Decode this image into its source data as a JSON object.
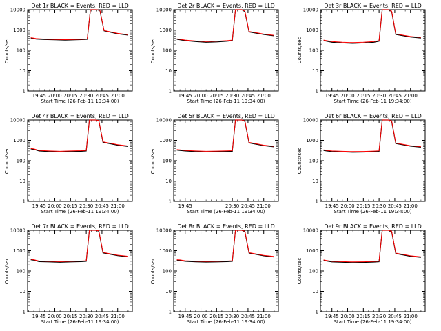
{
  "chart_data": {
    "type": "line",
    "y_scale": "log",
    "ylim": [
      1,
      10000
    ],
    "ytick_values": [
      1,
      10,
      100,
      1000,
      10000
    ],
    "ytick_labels": [
      "1",
      "10",
      "100",
      "1000",
      "10000"
    ],
    "xtick_labels": [
      "19:45",
      "20:00",
      "20:15",
      "20:30",
      "20:45",
      "21:00"
    ],
    "xtick_labels_short": [
      "19:45",
      "20:30",
      "20:45",
      "21:00"
    ],
    "xlabel": "Start Time (26-Feb-11 19:34:00)",
    "ylabel": "Counts/sec",
    "colors": {
      "events": "#000000",
      "lld": "#ff0000"
    },
    "panels": [
      {
        "title": "Det 1r BLACK = Events, RED = LLD",
        "series": [
          {
            "name": "Events",
            "x": [
              "19:37",
              "19:40",
              "19:42",
              "19:50",
              "20:00",
              "20:10",
              "20:20",
              "20:28",
              "20:31",
              "20:34",
              "20:37",
              "20:40",
              "20:43",
              "20:47",
              "21:00",
              "21:10"
            ],
            "y": [
              400,
              380,
              360,
              340,
              330,
              320,
              330,
              340,
              350,
              12000,
              12000,
              11000,
              9000,
              900,
              650,
              560
            ]
          },
          {
            "name": "LLD",
            "x": [
              "19:37",
              "19:40",
              "19:42",
              "19:50",
              "20:00",
              "20:10",
              "20:20",
              "20:28",
              "20:31",
              "20:34",
              "20:37",
              "20:40",
              "20:43",
              "20:47",
              "21:00",
              "21:10"
            ],
            "y": [
              420,
              400,
              380,
              360,
              345,
              335,
              345,
              355,
              365,
              12500,
              12500,
              11500,
              9500,
              950,
              680,
              590
            ]
          }
        ]
      },
      {
        "title": "Det 2r BLACK = Events, RED = LLD",
        "series": [
          {
            "name": "Events",
            "x": [
              "19:37",
              "19:40",
              "19:45",
              "19:55",
              "20:05",
              "20:15",
              "20:25",
              "20:30",
              "20:33",
              "20:36",
              "20:39",
              "20:42",
              "20:46",
              "21:00",
              "21:10"
            ],
            "y": [
              350,
              330,
              300,
              270,
              250,
              260,
              280,
              300,
              11000,
              11000,
              10500,
              8000,
              800,
              600,
              520
            ]
          },
          {
            "name": "LLD",
            "x": [
              "19:37",
              "19:40",
              "19:45",
              "19:55",
              "20:05",
              "20:15",
              "20:25",
              "20:30",
              "20:33",
              "20:36",
              "20:39",
              "20:42",
              "20:46",
              "21:00",
              "21:10"
            ],
            "y": [
              370,
              350,
              320,
              290,
              270,
              280,
              300,
              320,
              11500,
              11500,
              11000,
              8500,
              850,
              630,
              550
            ]
          }
        ]
      },
      {
        "title": "Det 3r BLACK = Events, RED = LLD",
        "series": [
          {
            "name": "Events",
            "x": [
              "19:37",
              "19:40",
              "19:45",
              "19:55",
              "20:05",
              "20:15",
              "20:25",
              "20:30",
              "20:33",
              "20:36",
              "20:39",
              "20:42",
              "20:46",
              "21:00",
              "21:10"
            ],
            "y": [
              300,
              280,
              250,
              230,
              220,
              230,
              250,
              280,
              10500,
              10500,
              10000,
              8000,
              600,
              450,
              400
            ]
          },
          {
            "name": "LLD",
            "x": [
              "19:37",
              "19:40",
              "19:45",
              "19:55",
              "20:05",
              "20:15",
              "20:25",
              "20:30",
              "20:33",
              "20:36",
              "20:39",
              "20:42",
              "20:46",
              "21:00",
              "21:10"
            ],
            "y": [
              320,
              300,
              270,
              250,
              240,
              250,
              270,
              300,
              11000,
              11000,
              10500,
              8500,
              640,
              480,
              430
            ]
          }
        ]
      },
      {
        "title": "Det 4r BLACK = Events, RED = LLD",
        "series": [
          {
            "name": "Events",
            "x": [
              "19:37",
              "19:40",
              "19:45",
              "19:55",
              "20:05",
              "20:15",
              "20:25",
              "20:30",
              "20:33",
              "20:36",
              "20:39",
              "20:42",
              "20:46",
              "21:00",
              "21:10"
            ],
            "y": [
              380,
              360,
              300,
              280,
              270,
              280,
              290,
              300,
              12000,
              12000,
              11000,
              9000,
              800,
              580,
              500
            ]
          },
          {
            "name": "LLD",
            "x": [
              "19:37",
              "19:40",
              "19:45",
              "19:55",
              "20:05",
              "20:15",
              "20:25",
              "20:30",
              "20:33",
              "20:36",
              "20:39",
              "20:42",
              "20:46",
              "21:00",
              "21:10"
            ],
            "y": [
              400,
              380,
              320,
              300,
              290,
              300,
              310,
              320,
              12500,
              12500,
              11500,
              9500,
              850,
              610,
              530
            ]
          }
        ]
      },
      {
        "title": "Det 5r BLACK = Events, RED = LLD",
        "series": [
          {
            "name": "Events",
            "x": [
              "19:37",
              "19:40",
              "19:45",
              "19:55",
              "20:05",
              "20:15",
              "20:25",
              "20:30",
              "20:33",
              "20:36",
              "20:39",
              "20:42",
              "20:46",
              "21:00",
              "21:10"
            ],
            "y": [
              330,
              320,
              300,
              280,
              270,
              275,
              285,
              290,
              11500,
              11500,
              11000,
              8500,
              750,
              550,
              480
            ]
          },
          {
            "name": "LLD",
            "x": [
              "19:37",
              "19:40",
              "19:45",
              "19:55",
              "20:05",
              "20:15",
              "20:25",
              "20:30",
              "20:33",
              "20:36",
              "20:39",
              "20:42",
              "20:46",
              "21:00",
              "21:10"
            ],
            "y": [
              350,
              340,
              320,
              300,
              290,
              295,
              305,
              310,
              12000,
              12000,
              11500,
              9000,
              800,
              580,
              510
            ]
          }
        ]
      },
      {
        "title": "Det 6r BLACK = Events, RED = LLD",
        "series": [
          {
            "name": "Events",
            "x": [
              "19:37",
              "19:40",
              "19:45",
              "19:55",
              "20:05",
              "20:15",
              "20:25",
              "20:30",
              "20:33",
              "20:36",
              "20:39",
              "20:42",
              "20:46",
              "21:00",
              "21:10"
            ],
            "y": [
              320,
              300,
              280,
              270,
              260,
              265,
              275,
              285,
              11000,
              11000,
              10500,
              8500,
              700,
              520,
              460
            ]
          },
          {
            "name": "LLD",
            "x": [
              "19:37",
              "19:40",
              "19:45",
              "19:55",
              "20:05",
              "20:15",
              "20:25",
              "20:30",
              "20:33",
              "20:36",
              "20:39",
              "20:42",
              "20:46",
              "21:00",
              "21:10"
            ],
            "y": [
              340,
              320,
              300,
              290,
              280,
              285,
              295,
              305,
              11500,
              11500,
              11000,
              9000,
              740,
              550,
              490
            ]
          }
        ]
      },
      {
        "title": "Det 7r BLACK = Events, RED = LLD",
        "series": [
          {
            "name": "Events",
            "x": [
              "19:37",
              "19:40",
              "19:45",
              "19:55",
              "20:05",
              "20:15",
              "20:25",
              "20:30",
              "20:33",
              "20:36",
              "20:39",
              "20:42",
              "20:46",
              "21:00",
              "21:10"
            ],
            "y": [
              360,
              340,
              290,
              280,
              270,
              280,
              290,
              300,
              12000,
              12000,
              11000,
              9000,
              780,
              570,
              500
            ]
          },
          {
            "name": "LLD",
            "x": [
              "19:37",
              "19:40",
              "19:45",
              "19:55",
              "20:05",
              "20:15",
              "20:25",
              "20:30",
              "20:33",
              "20:36",
              "20:39",
              "20:42",
              "20:46",
              "21:00",
              "21:10"
            ],
            "y": [
              380,
              360,
              310,
              300,
              290,
              300,
              310,
              320,
              12500,
              12500,
              11500,
              9500,
              820,
              600,
              530
            ]
          }
        ]
      },
      {
        "title": "Det 8r BLACK = Events, RED = LLD",
        "series": [
          {
            "name": "Events",
            "x": [
              "19:37",
              "19:40",
              "19:45",
              "19:55",
              "20:05",
              "20:15",
              "20:25",
              "20:30",
              "20:33",
              "20:36",
              "20:39",
              "20:42",
              "20:46",
              "21:00",
              "21:10"
            ],
            "y": [
              340,
              330,
              300,
              285,
              275,
              280,
              290,
              300,
              11500,
              11500,
              11000,
              8500,
              760,
              560,
              490
            ]
          },
          {
            "name": "LLD",
            "x": [
              "19:37",
              "19:40",
              "19:45",
              "19:55",
              "20:05",
              "20:15",
              "20:25",
              "20:30",
              "20:33",
              "20:36",
              "20:39",
              "20:42",
              "20:46",
              "21:00",
              "21:10"
            ],
            "y": [
              360,
              350,
              320,
              305,
              295,
              300,
              310,
              320,
              12000,
              12000,
              11500,
              9000,
              800,
              590,
              520
            ]
          }
        ]
      },
      {
        "title": "Det 9r BLACK = Events, RED = LLD",
        "series": [
          {
            "name": "Events",
            "x": [
              "19:37",
              "19:40",
              "19:45",
              "19:55",
              "20:05",
              "20:15",
              "20:25",
              "20:30",
              "20:33",
              "20:36",
              "20:39",
              "20:42",
              "20:46",
              "21:00",
              "21:10"
            ],
            "y": [
              330,
              310,
              280,
              270,
              260,
              265,
              275,
              285,
              11000,
              11000,
              10500,
              8500,
              720,
              530,
              470
            ]
          },
          {
            "name": "LLD",
            "x": [
              "19:37",
              "19:40",
              "19:45",
              "19:55",
              "20:05",
              "20:15",
              "20:25",
              "20:30",
              "20:33",
              "20:36",
              "20:39",
              "20:42",
              "20:46",
              "21:00",
              "21:10"
            ],
            "y": [
              350,
              330,
              300,
              290,
              280,
              285,
              295,
              305,
              11500,
              11500,
              11000,
              9000,
              760,
              560,
              500
            ]
          }
        ]
      }
    ]
  }
}
